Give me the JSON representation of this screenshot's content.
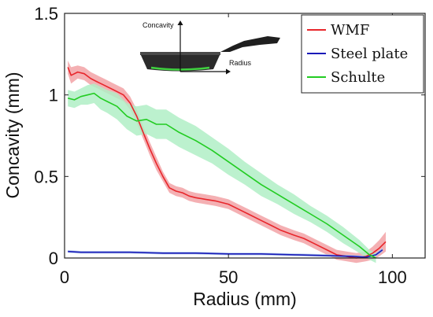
{
  "chart_data": {
    "type": "line",
    "xlabel": "Radius (mm)",
    "ylabel": "Concavity (mm)",
    "xlim": [
      0,
      110
    ],
    "ylim": [
      0,
      1.5
    ],
    "x_ticks": [
      0,
      50,
      100
    ],
    "y_ticks": [
      0,
      0.5,
      1,
      1.5
    ],
    "x_tick_labels": [
      "0",
      "50",
      "100"
    ],
    "y_tick_labels": [
      "0",
      "0.5",
      "1",
      "1.5"
    ],
    "grid": false,
    "legend_position": "top-right",
    "series": [
      {
        "name": "WMF",
        "color": "#e8262b",
        "band_color": "#f2a2a6",
        "x": [
          1,
          2,
          4,
          6,
          8,
          10,
          12,
          15,
          18,
          20,
          22,
          24,
          26,
          28,
          30,
          32,
          34,
          36,
          38,
          40,
          43,
          46,
          50,
          53,
          56,
          60,
          63,
          66,
          70,
          73,
          76,
          80,
          83,
          86,
          89,
          92,
          94,
          96,
          98
        ],
        "values": [
          1.17,
          1.12,
          1.14,
          1.13,
          1.1,
          1.08,
          1.06,
          1.03,
          1.0,
          0.95,
          0.87,
          0.77,
          0.67,
          0.58,
          0.5,
          0.43,
          0.41,
          0.4,
          0.38,
          0.37,
          0.36,
          0.35,
          0.33,
          0.3,
          0.27,
          0.23,
          0.2,
          0.17,
          0.14,
          0.12,
          0.09,
          0.05,
          0.02,
          0.01,
          0.0,
          0.01,
          0.03,
          0.06,
          0.1
        ],
        "band": [
          0.04,
          0.05,
          0.04,
          0.04,
          0.04,
          0.04,
          0.04,
          0.04,
          0.04,
          0.04,
          0.04,
          0.04,
          0.04,
          0.04,
          0.03,
          0.03,
          0.03,
          0.03,
          0.03,
          0.03,
          0.03,
          0.03,
          0.03,
          0.03,
          0.03,
          0.03,
          0.03,
          0.03,
          0.03,
          0.03,
          0.03,
          0.03,
          0.03,
          0.03,
          0.03,
          0.03,
          0.04,
          0.05,
          0.06
        ]
      },
      {
        "name": "Steel plate",
        "color": "#1a1ab8",
        "band_color": "#a9c6ec",
        "x": [
          1,
          5,
          10,
          20,
          30,
          40,
          50,
          60,
          70,
          80,
          88,
          92,
          95,
          97
        ],
        "values": [
          0.04,
          0.035,
          0.035,
          0.035,
          0.03,
          0.03,
          0.025,
          0.025,
          0.02,
          0.015,
          0.01,
          0.005,
          0.02,
          0.05
        ],
        "band": [
          0.008,
          0.008,
          0.008,
          0.008,
          0.008,
          0.008,
          0.008,
          0.008,
          0.008,
          0.008,
          0.008,
          0.008,
          0.01,
          0.012
        ]
      },
      {
        "name": "Schulte",
        "color": "#22cc22",
        "band_color": "#b0efc6",
        "x": [
          1,
          3,
          5,
          7,
          9,
          11,
          13,
          16,
          19,
          22,
          25,
          28,
          31,
          35,
          40,
          45,
          50,
          55,
          60,
          65,
          70,
          75,
          80,
          85,
          90,
          93,
          95
        ],
        "values": [
          0.98,
          0.97,
          0.99,
          1.0,
          1.01,
          0.98,
          0.96,
          0.93,
          0.87,
          0.84,
          0.85,
          0.82,
          0.82,
          0.77,
          0.72,
          0.66,
          0.59,
          0.52,
          0.45,
          0.39,
          0.33,
          0.27,
          0.21,
          0.14,
          0.07,
          0.02,
          0.0
        ],
        "band": [
          0.05,
          0.05,
          0.05,
          0.06,
          0.06,
          0.07,
          0.07,
          0.08,
          0.08,
          0.09,
          0.09,
          0.09,
          0.09,
          0.09,
          0.09,
          0.08,
          0.08,
          0.07,
          0.07,
          0.06,
          0.06,
          0.05,
          0.05,
          0.05,
          0.04,
          0.03,
          0.03
        ]
      }
    ],
    "inset": {
      "vertical_axis_label": "Concavity",
      "horizontal_axis_label": "Radius"
    }
  }
}
